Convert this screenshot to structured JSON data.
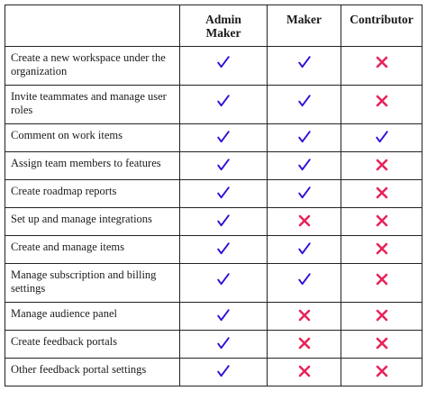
{
  "table": {
    "headers": [
      {
        "lines": [
          ""
        ]
      },
      {
        "lines": [
          "Admin",
          "Maker"
        ]
      },
      {
        "lines": [
          "Maker"
        ]
      },
      {
        "lines": [
          "Contributor"
        ]
      }
    ],
    "rows": [
      {
        "permission": "Create a new workspace under the organization",
        "admin_maker": "check",
        "maker": "check",
        "contributor": "cross"
      },
      {
        "permission": "Invite teammates and manage user roles",
        "admin_maker": "check",
        "maker": "check",
        "contributor": "cross"
      },
      {
        "permission": "Comment on work items",
        "admin_maker": "check",
        "maker": "check",
        "contributor": "check"
      },
      {
        "permission": "Assign team members to features",
        "admin_maker": "check",
        "maker": "check",
        "contributor": "cross"
      },
      {
        "permission": "Create roadmap reports",
        "admin_maker": "check",
        "maker": "check",
        "contributor": "cross"
      },
      {
        "permission": "Set up and manage integrations",
        "admin_maker": "check",
        "maker": "cross",
        "contributor": "cross"
      },
      {
        "permission": "Create and manage items",
        "admin_maker": "check",
        "maker": "check",
        "contributor": "cross"
      },
      {
        "permission": "Manage subscription and billing settings",
        "admin_maker": "check",
        "maker": "check",
        "contributor": "cross"
      },
      {
        "permission": "Manage audience panel",
        "admin_maker": "check",
        "maker": "cross",
        "contributor": "cross"
      },
      {
        "permission": "Create feedback portals",
        "admin_maker": "check",
        "maker": "cross",
        "contributor": "cross"
      },
      {
        "permission": "Other feedback portal settings",
        "admin_maker": "check",
        "maker": "cross",
        "contributor": "cross"
      }
    ]
  },
  "icons": {
    "check": {
      "name": "check-icon",
      "color": "#2a10d8"
    },
    "cross": {
      "name": "cross-icon",
      "color": "#e8245a"
    }
  }
}
